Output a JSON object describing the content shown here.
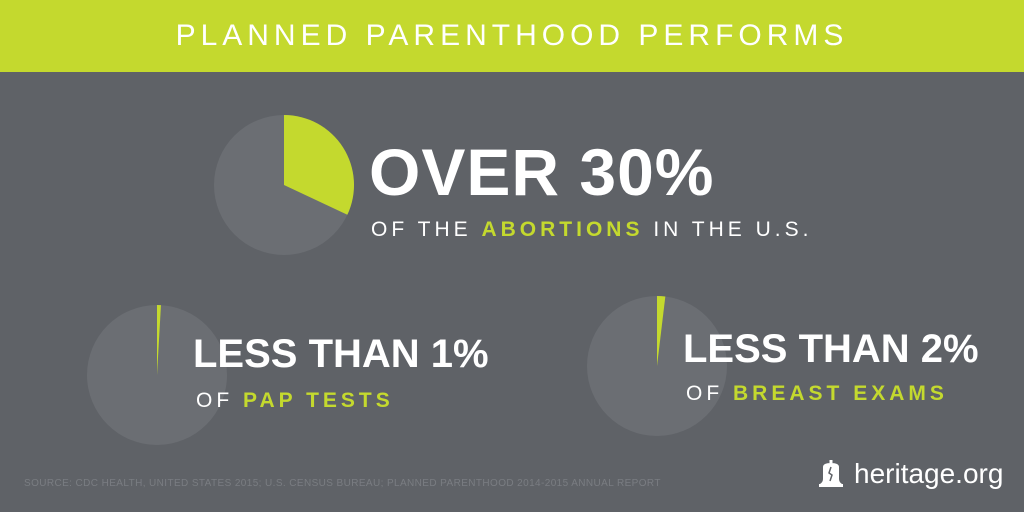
{
  "header": {
    "title": "PLANNED PARENTHOOD PERFORMS"
  },
  "chart_data": [
    {
      "type": "pie",
      "value_percent": 32,
      "headline": "OVER 30%",
      "sub_prefix": "OF THE",
      "sub_highlight": "ABORTIONS",
      "sub_suffix": "IN THE U.S."
    },
    {
      "type": "pie",
      "value_percent": 0.9,
      "headline": "LESS THAN 1%",
      "sub_prefix": "OF",
      "sub_highlight": "PAP TESTS",
      "sub_suffix": ""
    },
    {
      "type": "pie",
      "value_percent": 1.9,
      "headline": "LESS THAN 2%",
      "sub_prefix": "OF",
      "sub_highlight": "BREAST EXAMS",
      "sub_suffix": ""
    }
  ],
  "colors": {
    "accent": "#c4d92e",
    "background": "#5f6267",
    "pie_base": "#6b6e73",
    "text": "#ffffff"
  },
  "source": "SOURCE: CDC HEALTH, UNITED STATES 2015; U.S. CENSUS BUREAU; PLANNED PARENTHOOD 2014-2015 ANNUAL REPORT",
  "brand": {
    "name": "heritage.org",
    "icon": "liberty-bell-icon"
  }
}
